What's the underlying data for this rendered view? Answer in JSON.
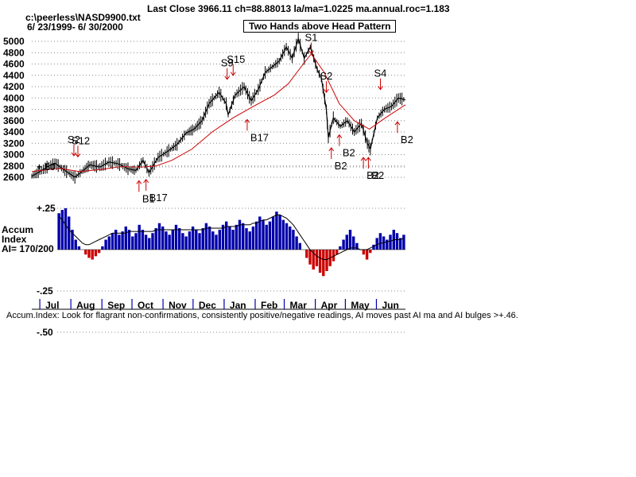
{
  "header": {
    "title": "Last Close 3966.11 ch=88.88013  la/ma=1.0225 ma.annual.roc=1.183",
    "file": "c:\\peerless\\NASD9900.txt",
    "date_range": "6/ 23/1999- 6/ 30/2000",
    "pattern_label": "Two Hands above Head Pattern"
  },
  "accum_panel": {
    "label1": "Accum",
    "label2": "Index",
    "label3": "AI= 170/200"
  },
  "footer": "Accum.Index: Look for flagrant non-confirmations, consistently positive/negative readings, AI moves past AI ma and AI bulges >+.46.",
  "colors": {
    "price": "#000000",
    "ma": "#cc0000",
    "accum_pos": "#0000aa",
    "accum_neg": "#cc0000",
    "grid": "#888888",
    "signal": "#cc0000"
  },
  "chart_data": [
    {
      "type": "line",
      "series": [
        {
          "name": "",
          "x": [
            "1999-06-23",
            "1999-07-01",
            "1999-07-10",
            "1999-07-16",
            "1999-07-26",
            "1999-08-05",
            "1999-08-12",
            "1999-08-20",
            "1999-08-30",
            "1999-09-08",
            "1999-09-17",
            "1999-09-27",
            "1999-10-05",
            "1999-10-12",
            "1999-10-18",
            "1999-10-27",
            "1999-11-05",
            "1999-11-15",
            "1999-11-24",
            "1999-12-02",
            "1999-12-10",
            "1999-12-17",
            "1999-12-27",
            "2000-01-03",
            "2000-01-05",
            "2000-01-12",
            "2000-01-21",
            "2000-01-28",
            "2000-02-04",
            "2000-02-11",
            "2000-02-18",
            "2000-02-25",
            "2000-03-03",
            "2000-03-09",
            "2000-03-15",
            "2000-03-21",
            "2000-03-27",
            "2000-04-03",
            "2000-04-07",
            "2000-04-12",
            "2000-04-14",
            "2000-04-19",
            "2000-04-26",
            "2000-05-03",
            "2000-05-10",
            "2000-05-17",
            "2000-05-23",
            "2000-05-26",
            "2000-06-02",
            "2000-06-09",
            "2000-06-16",
            "2000-06-23",
            "2000-06-30"
          ],
          "values": [
            2620,
            2700,
            2800,
            2850,
            2720,
            2600,
            2700,
            2820,
            2780,
            2870,
            2840,
            2750,
            2720,
            2900,
            2680,
            2950,
            3050,
            3180,
            3380,
            3450,
            3600,
            3900,
            4100,
            3900,
            3700,
            4050,
            4200,
            3950,
            4150,
            4450,
            4550,
            4650,
            4900,
            4700,
            5050,
            4700,
            4900,
            4500,
            4350,
            3800,
            3300,
            3650,
            3500,
            3600,
            3400,
            3550,
            3200,
            3100,
            3650,
            3800,
            3850,
            4000,
            3966
          ]
        },
        {
          "name": "",
          "x": [
            "1999-06-23",
            "1999-07-20",
            "1999-08-10",
            "1999-09-01",
            "1999-09-20",
            "1999-10-10",
            "1999-10-25",
            "1999-11-10",
            "1999-11-30",
            "1999-12-20",
            "2000-01-10",
            "2000-01-30",
            "2000-02-20",
            "2000-03-05",
            "2000-03-20",
            "2000-03-28",
            "2000-04-10",
            "2000-04-25",
            "2000-05-10",
            "2000-05-25",
            "2000-06-10",
            "2000-06-30"
          ],
          "values": [
            2700,
            2760,
            2700,
            2740,
            2790,
            2780,
            2800,
            2900,
            3100,
            3400,
            3650,
            3850,
            4050,
            4250,
            4600,
            4780,
            4450,
            3900,
            3600,
            3450,
            3650,
            3880
          ]
        }
      ],
      "ylim": [
        2400,
        5200
      ],
      "yticks": [
        "5000",
        "4800",
        "4600",
        "4400",
        "4200",
        "4000",
        "3800",
        "3600",
        "3400",
        "3200",
        "3000",
        "2800",
        "2600"
      ],
      "annotations": [
        {
          "label": "S2",
          "x": "1999-08-04",
          "y": 2980,
          "dir": "down"
        },
        {
          "label": "S12",
          "x": "1999-08-08",
          "y": 2960,
          "dir": "down"
        },
        {
          "label": "B1",
          "x": "1999-10-08",
          "y": 2540,
          "dir": "up"
        },
        {
          "label": "B17",
          "x": "1999-10-15",
          "y": 2560,
          "dir": "up"
        },
        {
          "label": "S9",
          "x": "2000-01-04",
          "y": 4330,
          "dir": "down"
        },
        {
          "label": "S15",
          "x": "2000-01-10",
          "y": 4400,
          "dir": "down"
        },
        {
          "label": "B17",
          "x": "2000-01-24",
          "y": 3620,
          "dir": "up"
        },
        {
          "label": "S1",
          "x": "2000-03-28",
          "y": 4780,
          "dir": "down"
        },
        {
          "label": "S2",
          "x": "2000-04-12",
          "y": 4100,
          "dir": "down"
        },
        {
          "label": "B2",
          "x": "2000-04-17",
          "y": 3120,
          "dir": "up"
        },
        {
          "label": "B2",
          "x": "2000-04-25",
          "y": 3350,
          "dir": "up"
        },
        {
          "label": "B2",
          "x": "2000-05-19",
          "y": 2950,
          "dir": "up"
        },
        {
          "label": "B2",
          "x": "2000-05-24",
          "y": 2950,
          "dir": "up"
        },
        {
          "label": "S4",
          "x": "2000-06-05",
          "y": 4150,
          "dir": "down"
        },
        {
          "label": "B2",
          "x": "2000-06-22",
          "y": 3580,
          "dir": "up"
        }
      ]
    },
    {
      "type": "bar",
      "title": "",
      "yticks": [
        "+.50",
        "+.25",
        "-.25",
        "-.50"
      ],
      "ylim": [
        -0.6,
        0.55
      ],
      "series": [
        {
          "name": "",
          "values": [
            0.22,
            0.24,
            0.25,
            0.2,
            0.12,
            0.06,
            0.02,
            0.0,
            -0.03,
            -0.05,
            -0.06,
            -0.04,
            -0.02,
            0.02,
            0.06,
            0.08,
            0.1,
            0.12,
            0.09,
            0.11,
            0.14,
            0.12,
            0.08,
            0.1,
            0.15,
            0.12,
            0.09,
            0.07,
            0.1,
            0.13,
            0.16,
            0.14,
            0.11,
            0.09,
            0.12,
            0.15,
            0.13,
            0.1,
            0.08,
            0.11,
            0.14,
            0.12,
            0.1,
            0.13,
            0.16,
            0.14,
            0.11,
            0.09,
            0.12,
            0.15,
            0.17,
            0.14,
            0.12,
            0.15,
            0.18,
            0.16,
            0.13,
            0.11,
            0.14,
            0.17,
            0.2,
            0.18,
            0.15,
            0.17,
            0.2,
            0.23,
            0.21,
            0.18,
            0.16,
            0.14,
            0.12,
            0.08,
            0.04,
            0.0,
            -0.05,
            -0.09,
            -0.12,
            -0.1,
            -0.14,
            -0.16,
            -0.13,
            -0.1,
            -0.07,
            -0.03,
            0.02,
            0.06,
            0.09,
            0.12,
            0.08,
            0.04,
            0.0,
            -0.03,
            -0.06,
            -0.02,
            0.03,
            0.07,
            0.1,
            0.08,
            0.06,
            0.09,
            0.12,
            0.1,
            0.07,
            0.09
          ]
        },
        {
          "name": "",
          "values": [
            0.2,
            0.18,
            0.15,
            0.12,
            0.1,
            0.08,
            0.06,
            0.04,
            0.03,
            0.03,
            0.04,
            0.05,
            0.06,
            0.07,
            0.08,
            0.09,
            0.1,
            0.1,
            0.1,
            0.1,
            0.1,
            0.11,
            0.11,
            0.11,
            0.11,
            0.11,
            0.11,
            0.11,
            0.11,
            0.12,
            0.12,
            0.12,
            0.12,
            0.12,
            0.12,
            0.12,
            0.12,
            0.12,
            0.12,
            0.12,
            0.12,
            0.12,
            0.12,
            0.12,
            0.13,
            0.13,
            0.13,
            0.13,
            0.13,
            0.13,
            0.14,
            0.14,
            0.14,
            0.14,
            0.15,
            0.15,
            0.15,
            0.15,
            0.16,
            0.16,
            0.17,
            0.18,
            0.18,
            0.19,
            0.2,
            0.21,
            0.21,
            0.2,
            0.19,
            0.17,
            0.15,
            0.12,
            0.09,
            0.06,
            0.03,
            0.0,
            -0.02,
            -0.04,
            -0.05,
            -0.06,
            -0.06,
            -0.05,
            -0.04,
            -0.03,
            -0.02,
            -0.01,
            0.0,
            0.01,
            0.01,
            0.01,
            0.0,
            0.0,
            0.0,
            0.01,
            0.02,
            0.03,
            0.04,
            0.04,
            0.05,
            0.05,
            0.06,
            0.06,
            0.06,
            0.07
          ]
        }
      ]
    }
  ],
  "months": [
    "Jul",
    "Aug",
    "Sep",
    "Oct",
    "Nov",
    "Dec",
    "Jan",
    "Feb",
    "Mar",
    "Apr",
    "May",
    "Jun"
  ]
}
